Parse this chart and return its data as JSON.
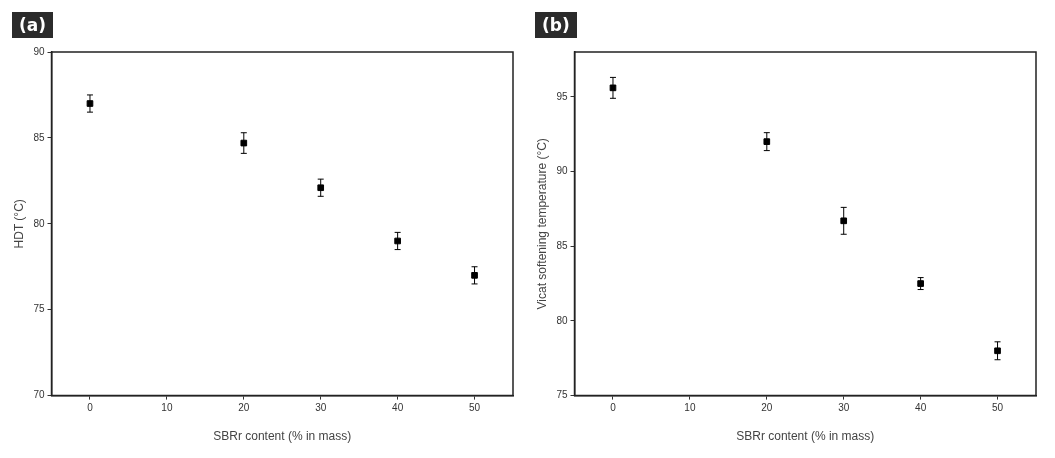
{
  "chart_data": [
    {
      "type": "scatter",
      "annotations": [
        "(a)"
      ],
      "xlabel": "SBRr content (% in mass)",
      "ylabel": "HDT (°C)",
      "x": [
        0,
        20,
        30,
        40,
        50
      ],
      "values": [
        87.0,
        84.7,
        82.1,
        79.0,
        77.0
      ],
      "errors": [
        0.5,
        0.6,
        0.5,
        0.5,
        0.5
      ],
      "color": "#000000",
      "xlim": [
        -5,
        55
      ],
      "xticks": [
        0,
        10,
        20,
        30,
        40,
        50
      ],
      "ylim": [
        70,
        90
      ],
      "yticks": [
        70,
        75,
        80,
        85,
        90
      ],
      "marker": "square",
      "grid": false,
      "legend": false
    },
    {
      "type": "scatter",
      "annotations": [
        "(b)"
      ],
      "xlabel": "SBRr content (% in mass)",
      "ylabel": "Vicat softening temperature (°C)",
      "x": [
        0,
        20,
        30,
        40,
        50
      ],
      "values": [
        95.6,
        92.0,
        86.7,
        82.5,
        78.0
      ],
      "errors": [
        0.7,
        0.6,
        0.9,
        0.4,
        0.6
      ],
      "color": "#000000",
      "xlim": [
        -5,
        55
      ],
      "xticks": [
        0,
        10,
        20,
        30,
        40,
        50
      ],
      "ylim": [
        75,
        98
      ],
      "yticks": [
        75,
        80,
        85,
        90,
        95
      ],
      "marker": "square",
      "grid": false,
      "legend": false
    }
  ]
}
